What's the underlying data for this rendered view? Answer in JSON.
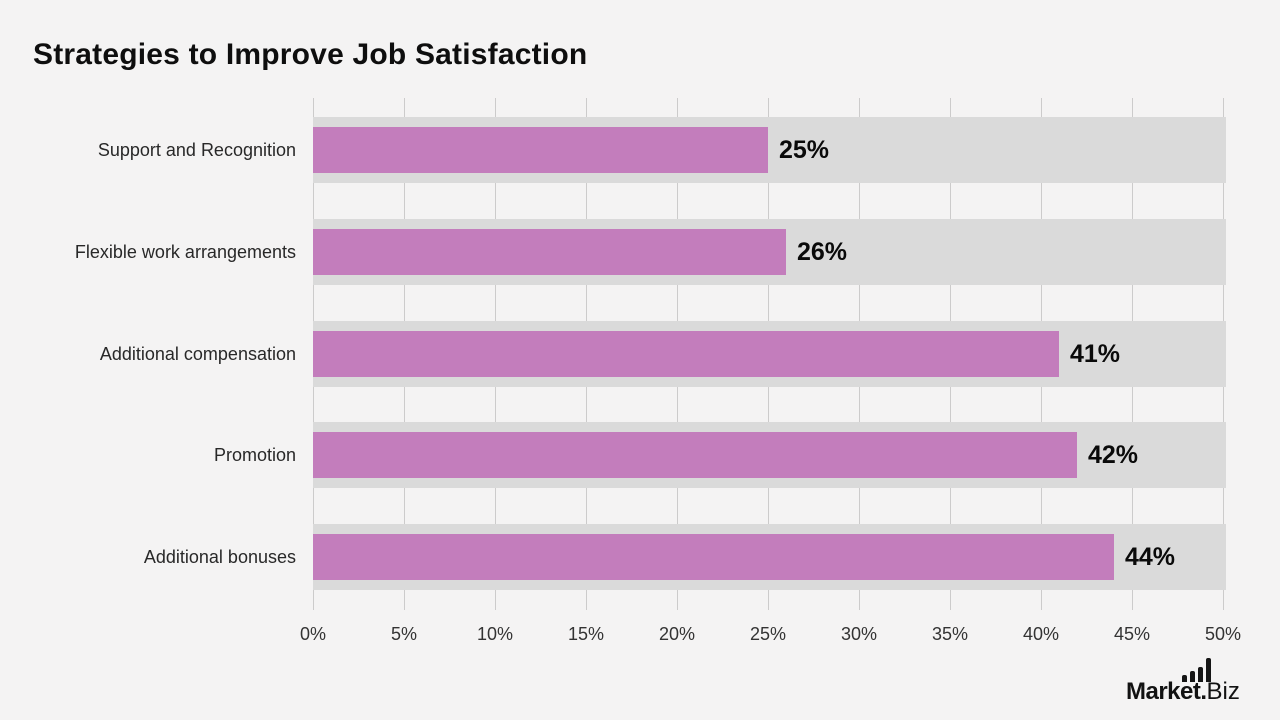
{
  "title": "Strategies to Improve Job Satisfaction",
  "chart_data": {
    "type": "bar",
    "orientation": "horizontal",
    "title": "Strategies to Improve Job Satisfaction",
    "categories": [
      "Support and Recognition",
      "Flexible work arrangements",
      "Additional compensation",
      "Promotion",
      "Additional bonuses"
    ],
    "values": [
      25,
      26,
      41,
      42,
      44
    ],
    "value_labels": [
      "25%",
      "26%",
      "41%",
      "42%",
      "44%"
    ],
    "xlim": [
      0,
      50
    ],
    "x_tick_values": [
      0,
      5,
      10,
      15,
      20,
      25,
      30,
      35,
      40,
      45,
      50
    ],
    "x_ticks": [
      "0%",
      "5%",
      "10%",
      "15%",
      "20%",
      "25%",
      "30%",
      "35%",
      "40%",
      "45%",
      "50%"
    ],
    "grid": true,
    "legend": false,
    "bar_color": "#c37dbc",
    "track_color": "#dadada",
    "background_color": "#f4f3f3"
  },
  "logo": {
    "brand_bold": "Market.",
    "brand_light": "Biz",
    "icon": "bar-chart-icon"
  }
}
